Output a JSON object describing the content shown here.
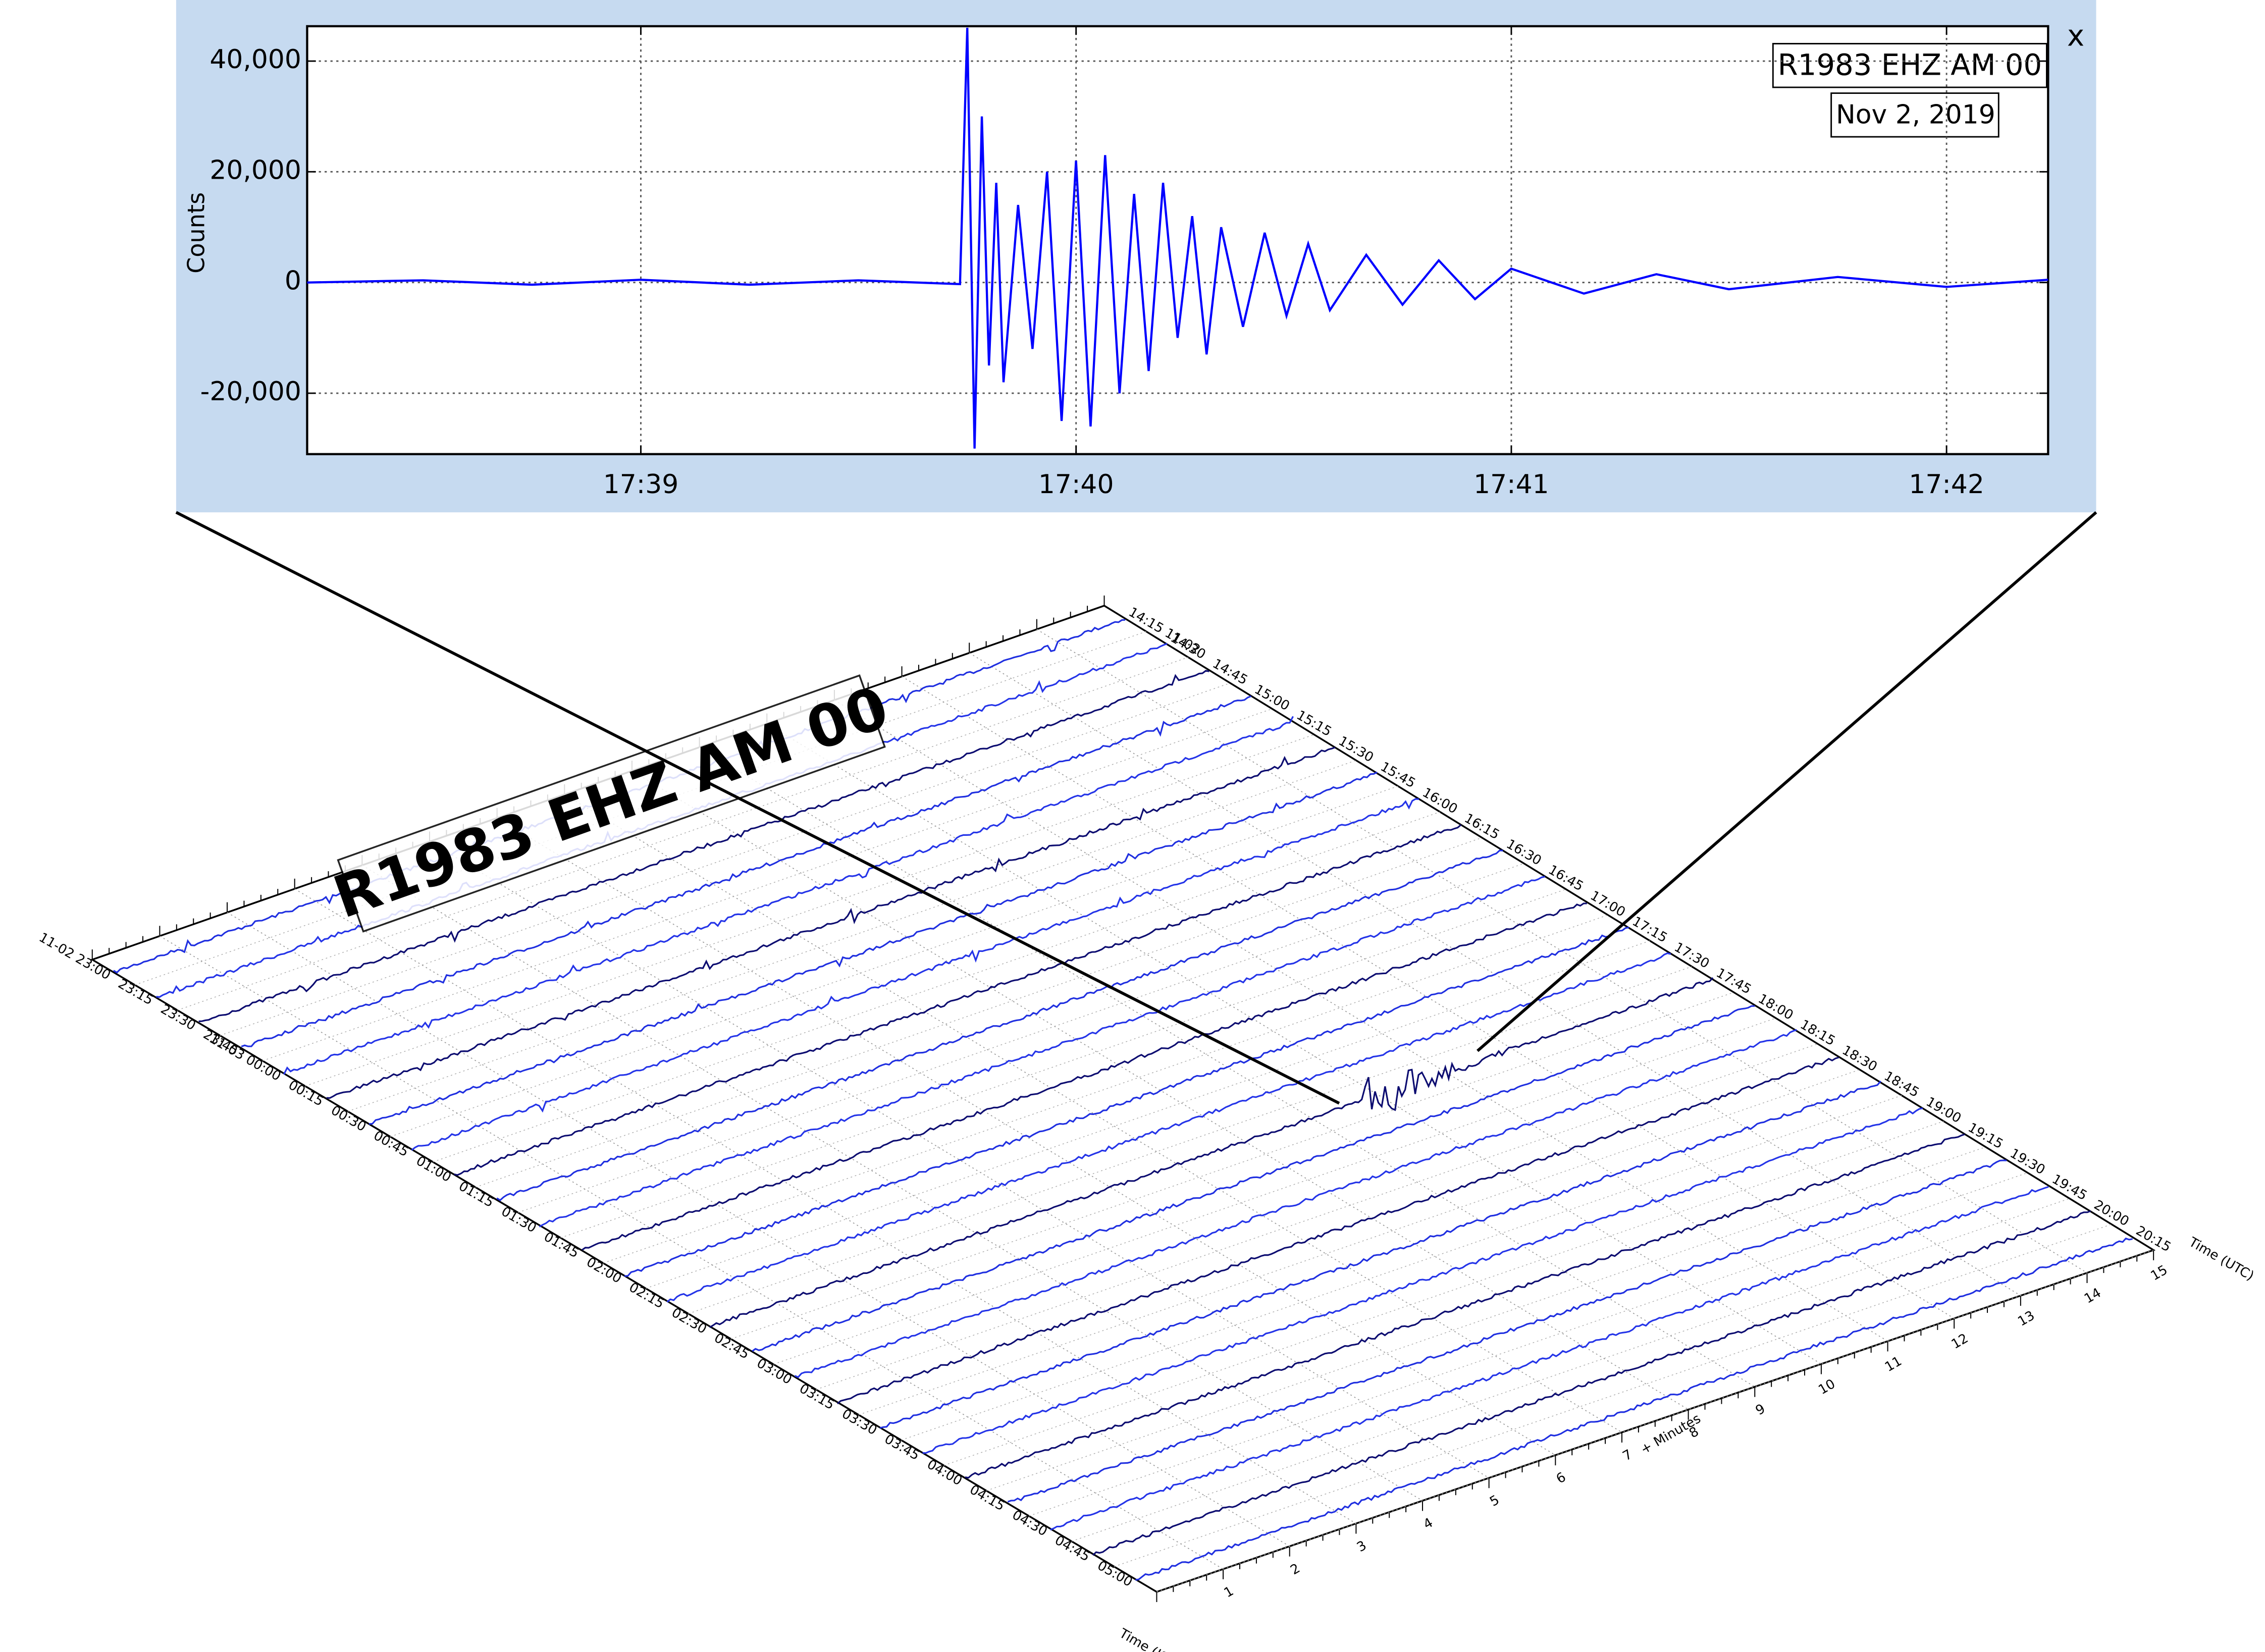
{
  "chart_data": {
    "type": "line",
    "ylabel": "Counts",
    "annotation": "Nov 2, 2019",
    "ylim": [
      -31000,
      46300
    ],
    "yticks": [
      {
        "value": -20000,
        "label": "-20,000"
      },
      0,
      {
        "value": 20000,
        "label": "20,000"
      },
      {
        "value": 40000,
        "label": "40,000"
      }
    ],
    "xlim": [
      "17:38:14",
      "17:42:14"
    ],
    "xticks": [
      {
        "value": "17:39:00",
        "label": "17:39"
      },
      {
        "value": "17:40:00",
        "label": "17:40"
      },
      {
        "value": "17:41:00",
        "label": "17:41"
      },
      {
        "value": "17:42:00",
        "label": "17:42"
      }
    ],
    "grid": true,
    "series": [
      {
        "name": "R1983 EHZ AM 00",
        "color": "#0000ff",
        "x": [
          "17:38:14",
          "17:38:30",
          "17:38:45",
          "17:39:00",
          "17:39:15",
          "17:39:30",
          "17:39:44",
          "17:39:45",
          "17:39:46",
          "17:39:47",
          "17:39:48",
          "17:39:49",
          "17:39:50",
          "17:39:52",
          "17:39:54",
          "17:39:56",
          "17:39:58",
          "17:40:00",
          "17:40:02",
          "17:40:04",
          "17:40:06",
          "17:40:08",
          "17:40:10",
          "17:40:12",
          "17:40:14",
          "17:40:16",
          "17:40:18",
          "17:40:20",
          "17:40:23",
          "17:40:26",
          "17:40:29",
          "17:40:32",
          "17:40:35",
          "17:40:40",
          "17:40:45",
          "17:40:50",
          "17:40:55",
          "17:41:00",
          "17:41:10",
          "17:41:20",
          "17:41:30",
          "17:41:45",
          "17:42:00",
          "17:42:14"
        ],
        "values": [
          0,
          400,
          -400,
          500,
          -400,
          400,
          -300,
          46000,
          -30000,
          30000,
          -15000,
          18000,
          -18000,
          14000,
          -12000,
          20000,
          -25000,
          22000,
          -26000,
          23000,
          -20000,
          16000,
          -16000,
          18000,
          -10000,
          12000,
          -13000,
          10000,
          -8000,
          9000,
          -6000,
          7000,
          -5000,
          5000,
          -4000,
          4000,
          -3000,
          2500,
          -2000,
          1500,
          -1200,
          1000,
          -800,
          500
        ]
      }
    ]
  },
  "close": "x",
  "helicorder": {
    "station": "R1983 EHZ AM 00",
    "left_labels": [
      "11-02 23:00",
      "23:15",
      "23:30",
      "23:45",
      "11-03 00:00",
      "00:15",
      "00:30",
      "00:45",
      "01:00",
      "01:15",
      "01:30",
      "01:45",
      "02:00",
      "02:15",
      "02:30",
      "02:45",
      "03:00",
      "03:15",
      "03:30",
      "03:45",
      "04:00",
      "04:15",
      "04:30",
      "04:45",
      "05:00"
    ],
    "right_labels": [
      "14:15 11-02",
      "14:30",
      "14:45",
      "15:00",
      "15:15",
      "15:30",
      "15:45",
      "16:00",
      "16:15",
      "16:30",
      "16:45",
      "17:00",
      "17:15",
      "17:30",
      "17:45",
      "18:00",
      "18:15",
      "18:30",
      "18:45",
      "19:00",
      "19:15",
      "19:30",
      "19:45",
      "20:00",
      "20:15"
    ],
    "minute_ticks": [
      1,
      2,
      3,
      4,
      5,
      6,
      7,
      8,
      9,
      10,
      11,
      12,
      13,
      14,
      15
    ],
    "left_axis_label": "Time (JST)",
    "minute_axis_label": "+ Minutes",
    "right_axis_label": "Time (UTC)"
  }
}
